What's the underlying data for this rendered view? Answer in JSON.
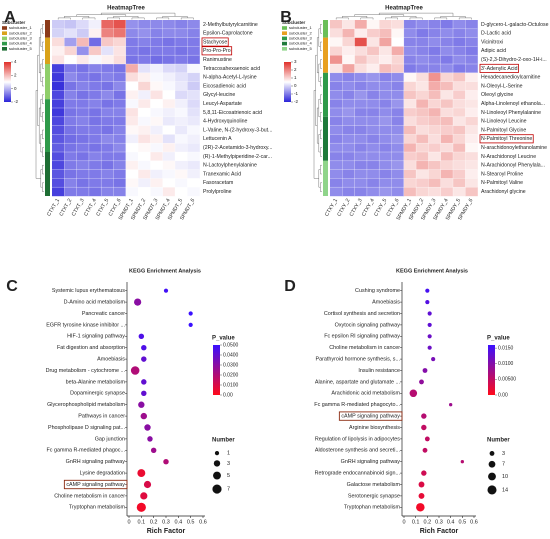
{
  "chart_data": [
    {
      "type": "heatmap",
      "panel": "A",
      "title": "HeatmapTree",
      "rows": [
        "2-Methylbutyrylcarnitine",
        "Epsilon-Caprolactone",
        "Stachyose",
        "Pro-Pro-Pro",
        "Ranimustine",
        "Tetracosahexaenoic acid",
        "N-alpha-Acetyl-L-lysine",
        "Eicosadienoic acid",
        "Glycyl-leucine",
        "Leucyl-Aspartate",
        "5,8,11-Eicosatrienoic acid",
        "4-Hydroxyquinoline",
        "L-Valine, N-(2-hydroxy-3-but...",
        "Lettucenin A",
        "(2R)-2-Acetamido-3-hydroxy...",
        "(R)-1-Methylpiperidine-2-car...",
        "N-Lactoylphenylalanine",
        "Tranexamic Acid",
        "Fasoracetam",
        "Prolylproline"
      ],
      "columns": [
        "CTXT_1",
        "CTXT_2",
        "CTXT_3",
        "CTXT_4",
        "CTXT_5",
        "CTXT_6",
        "SPMDT_1",
        "SPMDT_2",
        "SPMDT_3",
        "SPMDT_4",
        "SPMDT_5",
        "SPMDT_6"
      ],
      "values": [
        [
          0.3,
          0.2,
          0.5,
          0.8,
          3.2,
          3.5,
          -0.5,
          -0.6,
          -0.6,
          -0.6,
          -0.7,
          -0.6
        ],
        [
          0.4,
          0.6,
          0.3,
          1.2,
          2.8,
          3.0,
          -0.6,
          -0.5,
          -0.7,
          -0.6,
          -0.6,
          -0.7
        ],
        [
          1.5,
          -0.3,
          2.0,
          -1.0,
          1.8,
          1.6,
          -0.8,
          -0.7,
          -0.8,
          -0.9,
          -0.8,
          -0.8
        ],
        [
          1.2,
          1.6,
          -0.5,
          1.8,
          0.6,
          1.4,
          -0.8,
          -0.9,
          -0.8,
          -0.8,
          -0.9,
          -0.8
        ],
        [
          1.4,
          1.0,
          1.3,
          0.9,
          1.2,
          1.5,
          -0.9,
          -0.8,
          -1.0,
          -0.9,
          -0.8,
          -0.9
        ],
        [
          -1.6,
          -0.8,
          -0.9,
          -0.7,
          -0.8,
          -0.9,
          2.2,
          0.6,
          0.8,
          0.5,
          0.4,
          0.9
        ],
        [
          -1.7,
          -0.6,
          -0.8,
          -0.9,
          -0.7,
          -0.8,
          1.5,
          1.2,
          0.9,
          0.8,
          0.6,
          0.4
        ],
        [
          -1.8,
          -0.9,
          -0.7,
          -0.8,
          -0.9,
          -0.6,
          1.0,
          1.6,
          1.1,
          0.9,
          0.7,
          0.3
        ],
        [
          -1.5,
          -0.7,
          -0.9,
          -0.8,
          -0.6,
          -0.9,
          1.2,
          0.8,
          1.4,
          1.0,
          0.5,
          0.6
        ],
        [
          -1.6,
          -0.8,
          -0.8,
          -0.7,
          -0.9,
          -0.8,
          0.9,
          1.3,
          1.0,
          1.2,
          0.8,
          0.5
        ],
        [
          -1.7,
          -0.9,
          -0.8,
          -0.9,
          -0.7,
          -0.7,
          1.4,
          1.0,
          0.9,
          0.8,
          0.9,
          0.6
        ],
        [
          -1.5,
          -0.8,
          -0.7,
          -0.9,
          -0.8,
          -0.8,
          1.3,
          0.9,
          1.1,
          0.7,
          0.8,
          0.7
        ],
        [
          -1.4,
          -0.9,
          -0.8,
          -0.8,
          -0.9,
          -0.7,
          1.1,
          1.2,
          0.8,
          1.0,
          0.7,
          0.9
        ],
        [
          -1.3,
          -1.0,
          -0.9,
          -0.8,
          -0.6,
          -0.7,
          0.8,
          1.4,
          1.2,
          0.6,
          0.9,
          0.8
        ],
        [
          -1.2,
          -0.9,
          -0.8,
          -0.9,
          -0.8,
          -0.6,
          1.0,
          1.1,
          0.9,
          1.2,
          0.8,
          0.7
        ],
        [
          -1.4,
          -0.8,
          -0.9,
          -0.7,
          -0.8,
          -0.8,
          0.9,
          1.0,
          1.3,
          0.8,
          1.0,
          0.9
        ],
        [
          -1.5,
          -0.8,
          -0.7,
          -0.8,
          -0.9,
          -0.7,
          1.2,
          0.9,
          1.0,
          1.1,
          0.8,
          0.7
        ],
        [
          -1.3,
          -0.9,
          -0.8,
          -0.8,
          -0.7,
          -0.8,
          1.0,
          1.3,
          0.8,
          0.9,
          1.1,
          0.8
        ],
        [
          -1.4,
          -0.7,
          -0.9,
          -0.8,
          -0.8,
          -0.9,
          1.1,
          0.8,
          1.2,
          1.0,
          0.9,
          1.0
        ],
        [
          -1.6,
          -0.8,
          -0.8,
          -0.9,
          -0.7,
          -0.7,
          0.9,
          1.0,
          0.9,
          1.3,
          1.0,
          0.9
        ]
      ],
      "clim": [
        -2,
        4
      ],
      "colorbar_ticks": [
        4,
        2,
        0,
        -2
      ],
      "colors": [
        "#2a22d8",
        "#ffffff",
        "#e0302a"
      ],
      "subcluster_title": "Subcluster",
      "subclusters": [
        {
          "name": "subcluster_1",
          "color": "#8b3a1a",
          "rows": 2
        },
        {
          "name": "subcluster_2",
          "color": "#d9a21a",
          "rows": 3
        },
        {
          "name": "subcluster_3",
          "color": "#8fce6a",
          "rows": 4
        },
        {
          "name": "subcluster_4",
          "color": "#2f9a4a",
          "rows": 6
        },
        {
          "name": "subcluster_5",
          "color": "#1e6e34",
          "rows": 5
        }
      ],
      "highlight_rows": [
        2,
        3
      ]
    },
    {
      "type": "heatmap",
      "panel": "B",
      "title": "HeatmapTree",
      "rows": [
        "D-glycero-L-galacto-Octulose",
        "D-Lactic acid",
        "Vicinitroxi",
        "Adipic acid",
        "(S)-2,3-Dihydro-2-oxo-1H-i...",
        "3'-Adenylic Acid",
        "Hexadecanedioylcarnitine",
        "N-Oleoyl-L-Serine",
        "Oleoyl glycine",
        "Alpha-Linolenoyl ethanola...",
        "N-Linoleoyl Phenylalanine",
        "N-Linoleoyl Leucine",
        "N-Palmitoyl Glycine",
        "N-Palmitoyl Threonine",
        "N-arachidonoylethanolamine",
        "N-Arachidonoyl Leucine",
        "N-Arachidonoyl Phenylala...",
        "N-Stearoyl Proline",
        "N-Palmitoyl Valine",
        "Arachidonyl glycine"
      ],
      "columns": [
        "CTXY_1",
        "CTXY_2",
        "CTXY_3",
        "CTXY_4",
        "CTXY_5",
        "CTXY_6",
        "SPMDY_1",
        "SPMDY_2",
        "SPMDY_3",
        "SPMDY_4",
        "SPMDY_5",
        "SPMDY_6"
      ],
      "values": [
        [
          1.2,
          0.8,
          1.5,
          0.6,
          1.0,
          0.9,
          -0.9,
          -0.8,
          -0.9,
          -1.0,
          -0.8,
          -0.9
        ],
        [
          0.9,
          1.4,
          0.7,
          1.1,
          1.3,
          0.6,
          -0.8,
          -1.0,
          -0.9,
          -0.8,
          -0.9,
          -0.8
        ],
        [
          0.6,
          1.0,
          2.6,
          0.8,
          1.6,
          0.5,
          -0.9,
          -0.9,
          -0.8,
          -0.9,
          -1.0,
          -0.9
        ],
        [
          1.0,
          0.7,
          0.9,
          1.2,
          0.8,
          1.5,
          -0.8,
          -0.9,
          -1.0,
          -0.8,
          -0.9,
          -1.0
        ],
        [
          1.8,
          0.6,
          1.2,
          0.9,
          0.7,
          1.0,
          -0.9,
          -0.8,
          -0.9,
          -1.0,
          -0.8,
          -0.9
        ],
        [
          0.8,
          1.6,
          0.9,
          0.7,
          1.3,
          1.1,
          -1.0,
          -0.9,
          -0.9,
          -0.8,
          -1.0,
          -0.9
        ],
        [
          -0.8,
          -0.9,
          -0.8,
          -0.7,
          -0.9,
          -0.8,
          0.6,
          0.9,
          1.8,
          1.0,
          1.2,
          0.7
        ],
        [
          -0.9,
          -0.8,
          -0.9,
          -0.8,
          -0.8,
          -0.9,
          1.0,
          0.8,
          1.5,
          1.3,
          0.9,
          0.9
        ],
        [
          -0.8,
          -0.9,
          -0.7,
          -0.9,
          -0.8,
          -0.8,
          1.2,
          1.0,
          1.3,
          0.8,
          1.1,
          0.7
        ],
        [
          -0.9,
          -0.8,
          -0.8,
          -0.8,
          -0.9,
          -0.7,
          0.8,
          1.4,
          1.0,
          1.2,
          0.9,
          0.8
        ],
        [
          -0.8,
          -0.7,
          -0.9,
          -0.9,
          -0.8,
          -0.9,
          1.1,
          1.2,
          1.4,
          0.9,
          1.0,
          0.7
        ],
        [
          -0.9,
          -0.8,
          -0.8,
          -0.8,
          -0.7,
          -0.9,
          0.9,
          1.1,
          1.2,
          1.3,
          0.8,
          1.0
        ],
        [
          -0.8,
          -0.9,
          -0.9,
          -0.8,
          -0.8,
          -0.8,
          1.3,
          0.9,
          1.0,
          1.1,
          1.2,
          0.8
        ],
        [
          -0.9,
          -0.8,
          -0.8,
          -0.9,
          -0.8,
          -0.7,
          1.0,
          1.3,
          0.9,
          1.4,
          1.0,
          0.7
        ],
        [
          -0.8,
          -0.8,
          -0.9,
          -0.8,
          -0.9,
          -0.8,
          1.4,
          1.0,
          1.1,
          0.9,
          1.3,
          0.6
        ],
        [
          -0.9,
          -0.9,
          -0.8,
          -0.8,
          -0.8,
          -0.8,
          1.1,
          1.2,
          0.8,
          1.3,
          1.0,
          0.9
        ],
        [
          -0.8,
          -0.8,
          -0.9,
          -0.9,
          -0.8,
          -0.7,
          0.9,
          1.4,
          1.2,
          1.0,
          0.9,
          0.8
        ],
        [
          -0.8,
          -0.9,
          -0.8,
          -0.8,
          -0.9,
          -0.8,
          1.2,
          0.8,
          1.0,
          1.4,
          1.1,
          0.7
        ],
        [
          -0.9,
          -0.8,
          -0.8,
          -0.9,
          -0.8,
          -0.8,
          1.0,
          1.1,
          1.3,
          0.9,
          1.2,
          0.8
        ],
        [
          -0.8,
          -0.9,
          -0.9,
          -0.8,
          -0.7,
          -0.8,
          1.3,
          1.0,
          0.9,
          1.1,
          0.8,
          1.2
        ]
      ],
      "clim": [
        -2,
        3
      ],
      "colorbar_ticks": [
        3,
        2,
        1,
        0,
        -1,
        -2
      ],
      "colors": [
        "#2a22d8",
        "#ffffff",
        "#e0302a"
      ],
      "subcluster_title": "Subcluster",
      "subclusters": [
        {
          "name": "subcluster_1",
          "color": "#6bbf59",
          "rows": 2
        },
        {
          "name": "subcluster_2",
          "color": "#e8a020",
          "rows": 4
        },
        {
          "name": "subcluster_3",
          "color": "#2f9a4a",
          "rows": 5
        },
        {
          "name": "subcluster_4",
          "color": "#1e7a3a",
          "rows": 5
        },
        {
          "name": "subcluster_5",
          "color": "#8fd48a",
          "rows": 4
        }
      ],
      "highlight_rows": [
        5,
        13
      ]
    },
    {
      "type": "dot",
      "panel": "C",
      "title": "KEGG Enrichment Analysis",
      "x_label": "Rich Factor",
      "categories": [
        "Systemic lupus erythematosus",
        "D-Amino acid metabolism",
        "Pancreatic cancer",
        "EGFR tyrosine kinase inhibitor ...",
        "HIF-1 signaling pathway",
        "Fat digestion and absorption",
        "Amoebiasis",
        "Drug metabolism - cytochrome ...",
        "beta-Alanine metabolism",
        "Dopaminergic synapse",
        "Glycerophospholipid metabolism",
        "Pathways in cancer",
        "Phospholipase D signaling pat...",
        "Gap junction",
        "Fc gamma R-mediated phagoc...",
        "GnRH signaling pathway",
        "Lysine degradation",
        "cAMP signaling pathway",
        "Choline metabolism in cancer",
        "Tryptophan metabolism"
      ],
      "values": [
        0.3,
        0.07,
        0.5,
        0.5,
        0.1,
        0.12,
        0.12,
        0.05,
        0.12,
        0.12,
        0.1,
        0.12,
        0.15,
        0.17,
        0.2,
        0.3,
        0.1,
        0.15,
        0.12,
        0.1
      ],
      "p_values": [
        0.048,
        0.03,
        0.05,
        0.05,
        0.045,
        0.045,
        0.04,
        0.02,
        0.04,
        0.04,
        0.03,
        0.025,
        0.03,
        0.03,
        0.025,
        0.02,
        0.005,
        0.01,
        0.008,
        0.003
      ],
      "numbers": [
        1,
        4,
        1,
        1,
        2,
        2,
        2,
        6,
        2,
        2,
        3,
        3,
        3,
        2,
        2,
        2,
        5,
        4,
        4,
        7
      ],
      "xlim": [
        0,
        0.6
      ],
      "xticks": [
        0,
        0.1,
        0.2,
        0.3,
        0.4,
        0.5,
        0.6
      ],
      "color_title": "P_value",
      "clim": [
        0,
        0.05
      ],
      "colorbar_ticks": [
        {
          "value": 0.05,
          "label": "0.0500"
        },
        {
          "value": 0.04,
          "label": "0.0400"
        },
        {
          "value": 0.03,
          "label": "0.0300"
        },
        {
          "value": 0.02,
          "label": "0.0200"
        },
        {
          "value": 0.01,
          "label": "0.0100"
        },
        {
          "value": 0,
          "label": "0.00"
        }
      ],
      "colors": [
        "#ff0a1a",
        "#3a10ff"
      ],
      "size_title": "Number",
      "size_ticks": [
        1,
        3,
        5,
        7
      ],
      "highlight_rows": [
        17
      ],
      "red_labels": [
        16,
        17
      ]
    },
    {
      "type": "dot",
      "panel": "D",
      "title": "KEGG Enrichment Analysis",
      "x_label": "Rich Factor",
      "categories": [
        "Cushing syndrome",
        "Amoebiasis",
        "Cortisol synthesis and secretion",
        "Oxytocin signaling pathway",
        "Fc epsilon RI signaling pathway",
        "Choline metabolism in cancer",
        "Parathyroid hormone synthesis, s...",
        "Insulin resistance",
        "Alanine, aspartate and glutamate ...",
        "Arachidonic acid metabolism",
        "Fc gamma R-mediated phagocyto...",
        "cAMP signaling pathway",
        "Arginine biosynthesis",
        "Regulation of lipolysis in adipocytes",
        "Aldosterone synthesis and secreti...",
        "GnRH signaling pathway",
        "Retrograde endocannabinoid sign...",
        "Galactose metabolism",
        "Serotonergic synapse",
        "Tryptophan metabolism"
      ],
      "values": [
        0.2,
        0.2,
        0.22,
        0.22,
        0.22,
        0.22,
        0.25,
        0.18,
        0.15,
        0.08,
        0.4,
        0.17,
        0.17,
        0.2,
        0.18,
        0.5,
        0.17,
        0.15,
        0.15,
        0.14
      ],
      "p_values": [
        0.015,
        0.014,
        0.013,
        0.013,
        0.012,
        0.012,
        0.011,
        0.01,
        0.009,
        0.006,
        0.008,
        0.006,
        0.005,
        0.005,
        0.005,
        0.006,
        0.004,
        0.003,
        0.002,
        0.001
      ],
      "numbers": [
        2,
        2,
        2,
        2,
        2,
        2,
        2,
        3,
        3,
        9,
        1,
        4,
        4,
        3,
        3,
        1,
        4,
        5,
        5,
        12
      ],
      "xlim": [
        0,
        0.6
      ],
      "xticks": [
        0,
        0.1,
        0.2,
        0.3,
        0.4,
        0.5,
        0.6
      ],
      "color_title": "P_value",
      "clim": [
        0,
        0.016
      ],
      "colorbar_ticks": [
        {
          "value": 0.015,
          "label": "0.0150"
        },
        {
          "value": 0.01,
          "label": "0.0100"
        },
        {
          "value": 0.005,
          "label": "0.00500"
        },
        {
          "value": 0,
          "label": "0.00"
        }
      ],
      "colors": [
        "#ff0a1a",
        "#3a10ff"
      ],
      "size_title": "Number",
      "size_ticks": [
        3,
        7,
        10,
        14
      ],
      "highlight_rows": [
        11
      ],
      "red_labels": [
        11
      ]
    }
  ]
}
